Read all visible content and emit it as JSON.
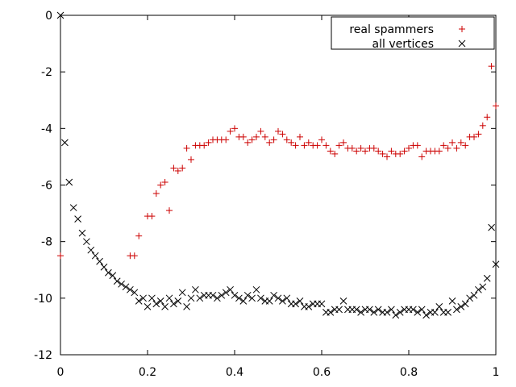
{
  "chart_data": {
    "type": "scatter",
    "title": "",
    "xlabel": "",
    "ylabel": "",
    "xlim": [
      0,
      1
    ],
    "ylim": [
      -12,
      0
    ],
    "xticks": [
      0,
      0.2,
      0.4,
      0.6,
      0.8,
      1
    ],
    "yticks": [
      0,
      -2,
      -4,
      -6,
      -8,
      -10,
      -12
    ],
    "xtick_labels": [
      "0",
      "0.2",
      "0.4",
      "0.6",
      "0.8",
      "1"
    ],
    "ytick_labels": [
      "0",
      "-2",
      "-4",
      "-6",
      "-8",
      "-10",
      "-12"
    ],
    "grid": false,
    "legend_position": "top-right",
    "series": [
      {
        "name": "real spammers",
        "marker": "plus",
        "color": "#cc0000",
        "x": [
          0.0,
          0.16,
          0.17,
          0.18,
          0.2,
          0.21,
          0.22,
          0.23,
          0.24,
          0.25,
          0.26,
          0.27,
          0.28,
          0.29,
          0.3,
          0.31,
          0.32,
          0.33,
          0.34,
          0.35,
          0.36,
          0.37,
          0.38,
          0.39,
          0.4,
          0.41,
          0.42,
          0.43,
          0.44,
          0.45,
          0.46,
          0.47,
          0.48,
          0.49,
          0.5,
          0.51,
          0.52,
          0.53,
          0.54,
          0.55,
          0.56,
          0.57,
          0.58,
          0.59,
          0.6,
          0.61,
          0.62,
          0.63,
          0.64,
          0.65,
          0.66,
          0.67,
          0.68,
          0.69,
          0.7,
          0.71,
          0.72,
          0.73,
          0.74,
          0.75,
          0.76,
          0.77,
          0.78,
          0.79,
          0.8,
          0.81,
          0.82,
          0.83,
          0.84,
          0.85,
          0.86,
          0.87,
          0.88,
          0.89,
          0.9,
          0.91,
          0.92,
          0.93,
          0.94,
          0.95,
          0.96,
          0.97,
          0.98,
          0.99,
          1.0
        ],
        "y": [
          -8.5,
          -8.5,
          -8.5,
          -7.8,
          -7.1,
          -7.1,
          -6.3,
          -6.0,
          -5.9,
          -6.9,
          -5.4,
          -5.5,
          -5.4,
          -4.7,
          -5.1,
          -4.6,
          -4.6,
          -4.6,
          -4.5,
          -4.4,
          -4.4,
          -4.4,
          -4.4,
          -4.1,
          -4.0,
          -4.3,
          -4.3,
          -4.5,
          -4.4,
          -4.3,
          -4.1,
          -4.3,
          -4.5,
          -4.4,
          -4.1,
          -4.2,
          -4.4,
          -4.5,
          -4.6,
          -4.3,
          -4.6,
          -4.5,
          -4.6,
          -4.6,
          -4.4,
          -4.6,
          -4.8,
          -4.9,
          -4.6,
          -4.5,
          -4.7,
          -4.7,
          -4.8,
          -4.7,
          -4.8,
          -4.7,
          -4.7,
          -4.8,
          -4.9,
          -5.0,
          -4.8,
          -4.9,
          -4.9,
          -4.8,
          -4.7,
          -4.6,
          -4.6,
          -5.0,
          -4.8,
          -4.8,
          -4.8,
          -4.8,
          -4.6,
          -4.7,
          -4.5,
          -4.7,
          -4.5,
          -4.6,
          -4.3,
          -4.3,
          -4.2,
          -3.9,
          -3.6,
          -1.8,
          -3.2
        ]
      },
      {
        "name": "all vertices",
        "marker": "cross",
        "color": "#000000",
        "x": [
          0.0,
          0.01,
          0.02,
          0.03,
          0.04,
          0.05,
          0.06,
          0.07,
          0.08,
          0.09,
          0.1,
          0.11,
          0.12,
          0.13,
          0.14,
          0.15,
          0.16,
          0.17,
          0.18,
          0.19,
          0.2,
          0.21,
          0.22,
          0.23,
          0.24,
          0.25,
          0.26,
          0.27,
          0.28,
          0.29,
          0.3,
          0.31,
          0.32,
          0.33,
          0.34,
          0.35,
          0.36,
          0.37,
          0.38,
          0.39,
          0.4,
          0.41,
          0.42,
          0.43,
          0.44,
          0.45,
          0.46,
          0.47,
          0.48,
          0.49,
          0.5,
          0.51,
          0.52,
          0.53,
          0.54,
          0.55,
          0.56,
          0.57,
          0.58,
          0.59,
          0.6,
          0.61,
          0.62,
          0.63,
          0.64,
          0.65,
          0.66,
          0.67,
          0.68,
          0.69,
          0.7,
          0.71,
          0.72,
          0.73,
          0.74,
          0.75,
          0.76,
          0.77,
          0.78,
          0.79,
          0.8,
          0.81,
          0.82,
          0.83,
          0.84,
          0.85,
          0.86,
          0.87,
          0.88,
          0.89,
          0.9,
          0.91,
          0.92,
          0.93,
          0.94,
          0.95,
          0.96,
          0.97,
          0.98,
          0.99,
          1.0
        ],
        "y": [
          0.0,
          -4.5,
          -5.9,
          -6.8,
          -7.2,
          -7.7,
          -8.0,
          -8.3,
          -8.5,
          -8.7,
          -8.9,
          -9.1,
          -9.2,
          -9.4,
          -9.5,
          -9.6,
          -9.7,
          -9.8,
          -10.1,
          -10.0,
          -10.3,
          -10.0,
          -10.2,
          -10.1,
          -10.3,
          -10.0,
          -10.2,
          -10.1,
          -9.8,
          -10.3,
          -10.0,
          -9.7,
          -10.0,
          -9.9,
          -9.9,
          -9.9,
          -10.0,
          -9.9,
          -9.8,
          -9.7,
          -9.9,
          -10.0,
          -10.1,
          -9.9,
          -10.0,
          -9.7,
          -10.0,
          -10.1,
          -10.1,
          -9.9,
          -10.0,
          -10.1,
          -10.0,
          -10.2,
          -10.2,
          -10.1,
          -10.3,
          -10.3,
          -10.2,
          -10.2,
          -10.2,
          -10.5,
          -10.5,
          -10.4,
          -10.4,
          -10.1,
          -10.4,
          -10.4,
          -10.4,
          -10.5,
          -10.4,
          -10.4,
          -10.5,
          -10.4,
          -10.5,
          -10.5,
          -10.4,
          -10.6,
          -10.5,
          -10.4,
          -10.4,
          -10.4,
          -10.5,
          -10.4,
          -10.6,
          -10.5,
          -10.5,
          -10.3,
          -10.5,
          -10.5,
          -10.1,
          -10.4,
          -10.3,
          -10.2,
          -10.0,
          -9.9,
          -9.7,
          -9.6,
          -9.3,
          -7.5,
          -8.8
        ]
      }
    ]
  }
}
